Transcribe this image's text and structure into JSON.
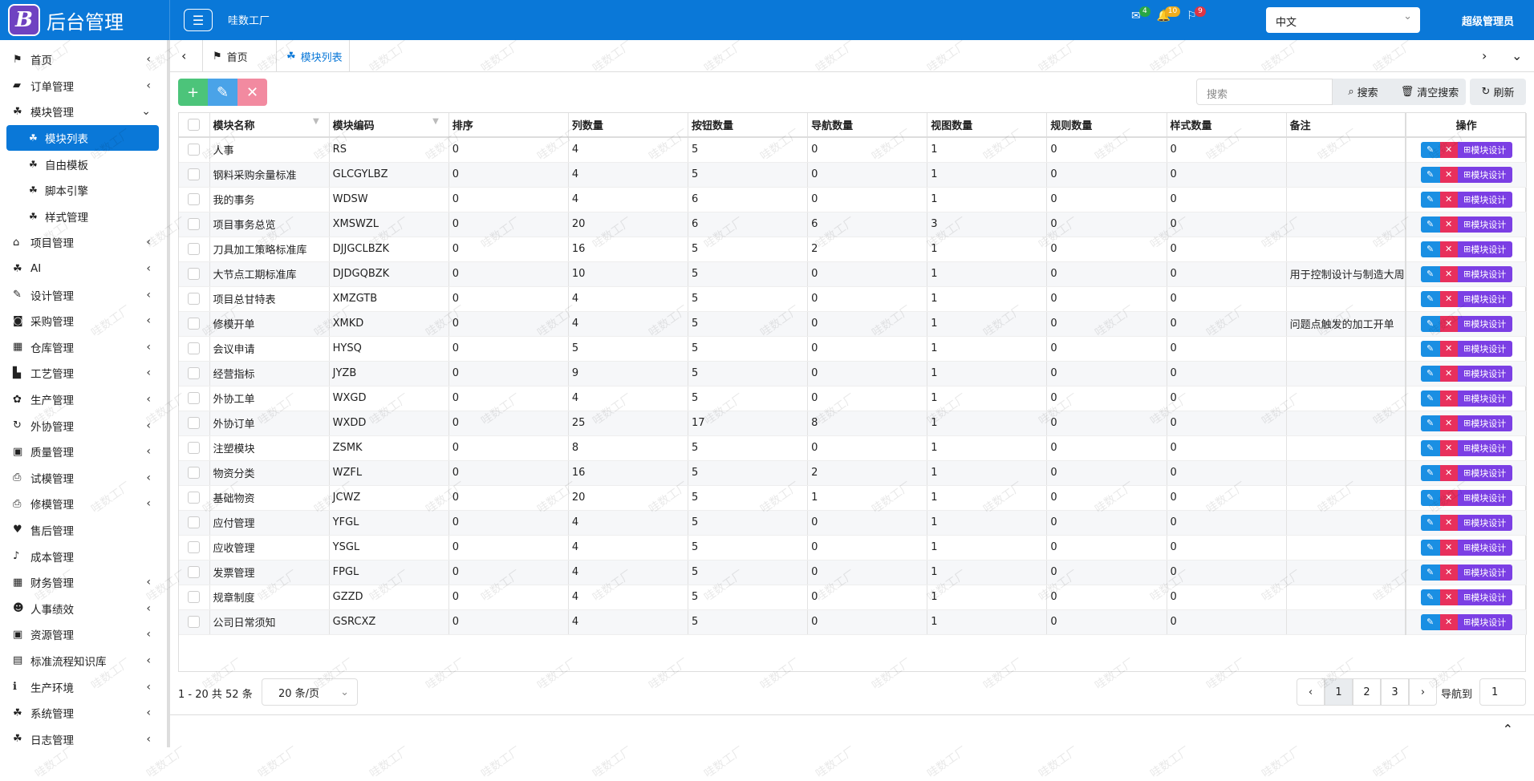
{
  "header": {
    "logo_letter": "B",
    "title": "后台管理",
    "factory": "哇数工厂",
    "badges": [
      {
        "icon": "mail",
        "count": "4",
        "color": "#28a745"
      },
      {
        "icon": "bell",
        "count": "10",
        "color": "#f0ad1c"
      },
      {
        "icon": "flag",
        "count": "9",
        "color": "#dc3545"
      }
    ],
    "language": "中文",
    "user": "超级管理员"
  },
  "sidebar": [
    {
      "label": "首页",
      "icon": "⚑",
      "expandable": true
    },
    {
      "label": "订单管理",
      "icon": "▰",
      "expandable": true
    },
    {
      "label": "模块管理",
      "icon": "☘",
      "expandable": true,
      "open": true,
      "children": [
        {
          "label": "模块列表",
          "active": true
        },
        {
          "label": "自由模板"
        },
        {
          "label": "脚本引擎"
        },
        {
          "label": "样式管理"
        }
      ]
    },
    {
      "label": "项目管理",
      "icon": "⌂",
      "expandable": true
    },
    {
      "label": "AI",
      "icon": "☘",
      "expandable": true
    },
    {
      "label": "设计管理",
      "icon": "✎",
      "expandable": true
    },
    {
      "label": "采购管理",
      "icon": "◙",
      "expandable": true
    },
    {
      "label": "仓库管理",
      "icon": "▦",
      "expandable": true
    },
    {
      "label": "工艺管理",
      "icon": "▙",
      "expandable": true
    },
    {
      "label": "生产管理",
      "icon": "✿",
      "expandable": true
    },
    {
      "label": "外协管理",
      "icon": "↻",
      "expandable": true
    },
    {
      "label": "质量管理",
      "icon": "▣",
      "expandable": true
    },
    {
      "label": "试模管理",
      "icon": "⎙",
      "expandable": true
    },
    {
      "label": "修模管理",
      "icon": "⎙",
      "expandable": true
    },
    {
      "label": "售后管理",
      "icon": "♥"
    },
    {
      "label": "成本管理",
      "icon": "♪"
    },
    {
      "label": "财务管理",
      "icon": "▦",
      "expandable": true
    },
    {
      "label": "人事绩效",
      "icon": "☻",
      "expandable": true
    },
    {
      "label": "资源管理",
      "icon": "▣",
      "expandable": true
    },
    {
      "label": "标准流程知识库",
      "icon": "▤",
      "expandable": true
    },
    {
      "label": "生产环境",
      "icon": "ℹ",
      "expandable": true
    },
    {
      "label": "系统管理",
      "icon": "☘",
      "expandable": true
    },
    {
      "label": "日志管理",
      "icon": "☘",
      "expandable": true
    }
  ],
  "tabs": [
    {
      "label": "首页",
      "icon": "⚑"
    },
    {
      "label": "模块列表",
      "icon": "☘",
      "active": true
    }
  ],
  "toolbar": {
    "search_placeholder": "搜索",
    "search": "搜索",
    "clear": "清空搜索",
    "refresh": "刷新"
  },
  "table": {
    "columns": [
      "模块名称",
      "模块编码",
      "排序",
      "列数量",
      "按钮数量",
      "导航数量",
      "视图数量",
      "规则数量",
      "样式数量",
      "备注",
      "操作"
    ],
    "action_label": "模块设计",
    "rows": [
      [
        "人事",
        "RS",
        0,
        4,
        5,
        0,
        1,
        0,
        0
      ],
      [
        "钢料采购余量标准",
        "GLCGYLBZ",
        0,
        4,
        5,
        0,
        1,
        0,
        0
      ],
      [
        "我的事务",
        "WDSW",
        0,
        4,
        6,
        0,
        1,
        0,
        0
      ],
      [
        "项目事务总览",
        "XMSWZL",
        0,
        20,
        6,
        6,
        3,
        0,
        0
      ],
      [
        "刀具加工策略标准库",
        "DJJGCLBZK",
        0,
        16,
        5,
        2,
        1,
        0,
        0
      ],
      [
        "大节点工期标准库",
        "DJDGQBZK",
        0,
        10,
        5,
        0,
        1,
        0,
        0,
        "用于控制设计与制造大周"
      ],
      [
        "项目总甘特表",
        "XMZGTB",
        0,
        4,
        5,
        0,
        1,
        0,
        0
      ],
      [
        "修模开单",
        "XMKD",
        0,
        4,
        5,
        0,
        1,
        0,
        0,
        "问题点触发的加工开单"
      ],
      [
        "会议申请",
        "HYSQ",
        0,
        5,
        5,
        0,
        1,
        0,
        0
      ],
      [
        "经营指标",
        "JYZB",
        0,
        9,
        5,
        0,
        1,
        0,
        0
      ],
      [
        "外协工单",
        "WXGD",
        0,
        4,
        5,
        0,
        1,
        0,
        0
      ],
      [
        "外协订单",
        "WXDD",
        0,
        25,
        17,
        8,
        1,
        0,
        0
      ],
      [
        "注塑模块",
        "ZSMK",
        0,
        8,
        5,
        0,
        1,
        0,
        0
      ],
      [
        "物资分类",
        "WZFL",
        0,
        16,
        5,
        2,
        1,
        0,
        0
      ],
      [
        "基础物资",
        "JCWZ",
        0,
        20,
        5,
        1,
        1,
        0,
        0
      ],
      [
        "应付管理",
        "YFGL",
        0,
        4,
        5,
        0,
        1,
        0,
        0
      ],
      [
        "应收管理",
        "YSGL",
        0,
        4,
        5,
        0,
        1,
        0,
        0
      ],
      [
        "发票管理",
        "FPGL",
        0,
        4,
        5,
        0,
        1,
        0,
        0
      ],
      [
        "规章制度",
        "GZZD",
        0,
        4,
        5,
        0,
        1,
        0,
        0
      ],
      [
        "公司日常须知",
        "GSRCXZ",
        0,
        4,
        5,
        0,
        1,
        0,
        0
      ]
    ]
  },
  "pagination": {
    "summary": "1 - 20 共 52 条",
    "page_size": "20 条/页",
    "pages": [
      "1",
      "2",
      "3"
    ],
    "current": "1",
    "goto_label": "导航到",
    "goto_value": "1"
  },
  "watermark": "哇数工厂"
}
